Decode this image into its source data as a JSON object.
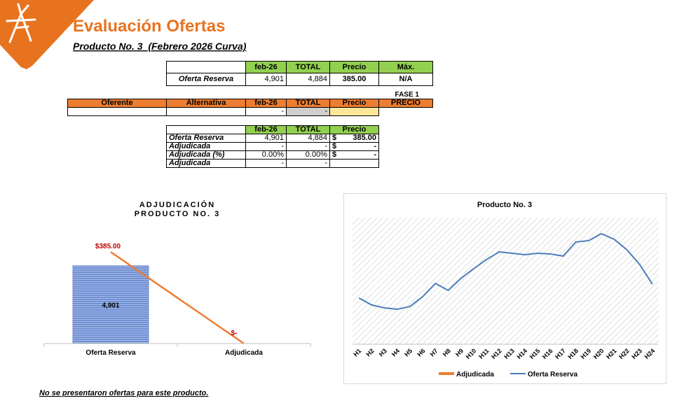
{
  "header": {
    "title": "Evaluación Ofertas",
    "subtitle": "Producto No. 3  (Febrero 2026 Curva)"
  },
  "table_reserva": {
    "headers": [
      "feb-26",
      "TOTAL",
      "Precio",
      "Máx."
    ],
    "row": [
      "Oferta Reserva",
      "4,901",
      "4,884",
      "385.00",
      "N/A"
    ]
  },
  "fase_label": "FASE 1",
  "table_oferentes": {
    "headers": [
      "Oferente",
      "Alternativa",
      "feb-26",
      "TOTAL",
      "Precio",
      "PRECIO"
    ],
    "row": {
      "feb26": "-",
      "total": "-"
    }
  },
  "table_resumen": {
    "headers": [
      "feb-26",
      "TOTAL",
      "Precio"
    ],
    "rows": [
      {
        "label": "Oferta Reserva",
        "feb26": "4,901",
        "total": "4,884",
        "currency": "$",
        "precio": "385.00"
      },
      {
        "label": "Adjudicada",
        "feb26": "-",
        "total": "-",
        "currency": "$",
        "precio": "-"
      },
      {
        "label": "Adjudicada (%)",
        "feb26": "0.00%",
        "total": "0.00%",
        "currency": "$",
        "precio": "-"
      },
      {
        "label": "Adjudicada",
        "feb26": "-",
        "total": "-"
      }
    ]
  },
  "footer_note": "No se presentaron ofertas para este producto.",
  "chart_data": [
    {
      "type": "bar",
      "title_lines": [
        "ADJUDICACIÓN",
        "PRODUCTO NO. 3"
      ],
      "categories": [
        "Oferta Reserva",
        "Adjudicada"
      ],
      "series": [
        {
          "type": "bar",
          "color": "#6f8fd3",
          "values": [
            4901,
            0
          ],
          "value_labels": [
            "4,901",
            "-"
          ]
        },
        {
          "type": "line",
          "axis": "y2",
          "color": "#ed7d31",
          "values": [
            385,
            0
          ],
          "value_labels": [
            "$385.00",
            "$-"
          ]
        }
      ],
      "ylim": [
        0,
        6000
      ],
      "y2lim": [
        0,
        400
      ]
    },
    {
      "type": "line",
      "title": "Producto No. 3",
      "categories": [
        "H1",
        "H2",
        "H3",
        "H4",
        "H5",
        "H6",
        "H7",
        "H8",
        "H9",
        "H10",
        "H11",
        "H12",
        "H13",
        "H14",
        "H15",
        "H16",
        "H17",
        "H18",
        "H19",
        "H20",
        "H21",
        "H22",
        "H23",
        "H24"
      ],
      "series": [
        {
          "name": "Adjudicada",
          "color": "#ed7d31",
          "values": [
            null,
            null,
            null,
            null,
            null,
            null,
            null,
            null,
            null,
            null,
            null,
            null,
            null,
            null,
            null,
            null,
            null,
            null,
            null,
            null,
            null,
            null,
            null,
            null
          ]
        },
        {
          "name": "Oferta Reserva",
          "color": "#4a7ebb",
          "values": [
            36.5,
            31,
            28.7,
            27.6,
            29.8,
            37.6,
            48,
            42.5,
            52,
            59.7,
            66.9,
            72.9,
            71.8,
            70.7,
            71.8,
            71.3,
            69.6,
            80.7,
            81.8,
            87.3,
            82.9,
            74.6,
            63,
            47.5
          ]
        }
      ],
      "ylim": [
        0,
        100
      ],
      "legend": "bottom"
    }
  ]
}
